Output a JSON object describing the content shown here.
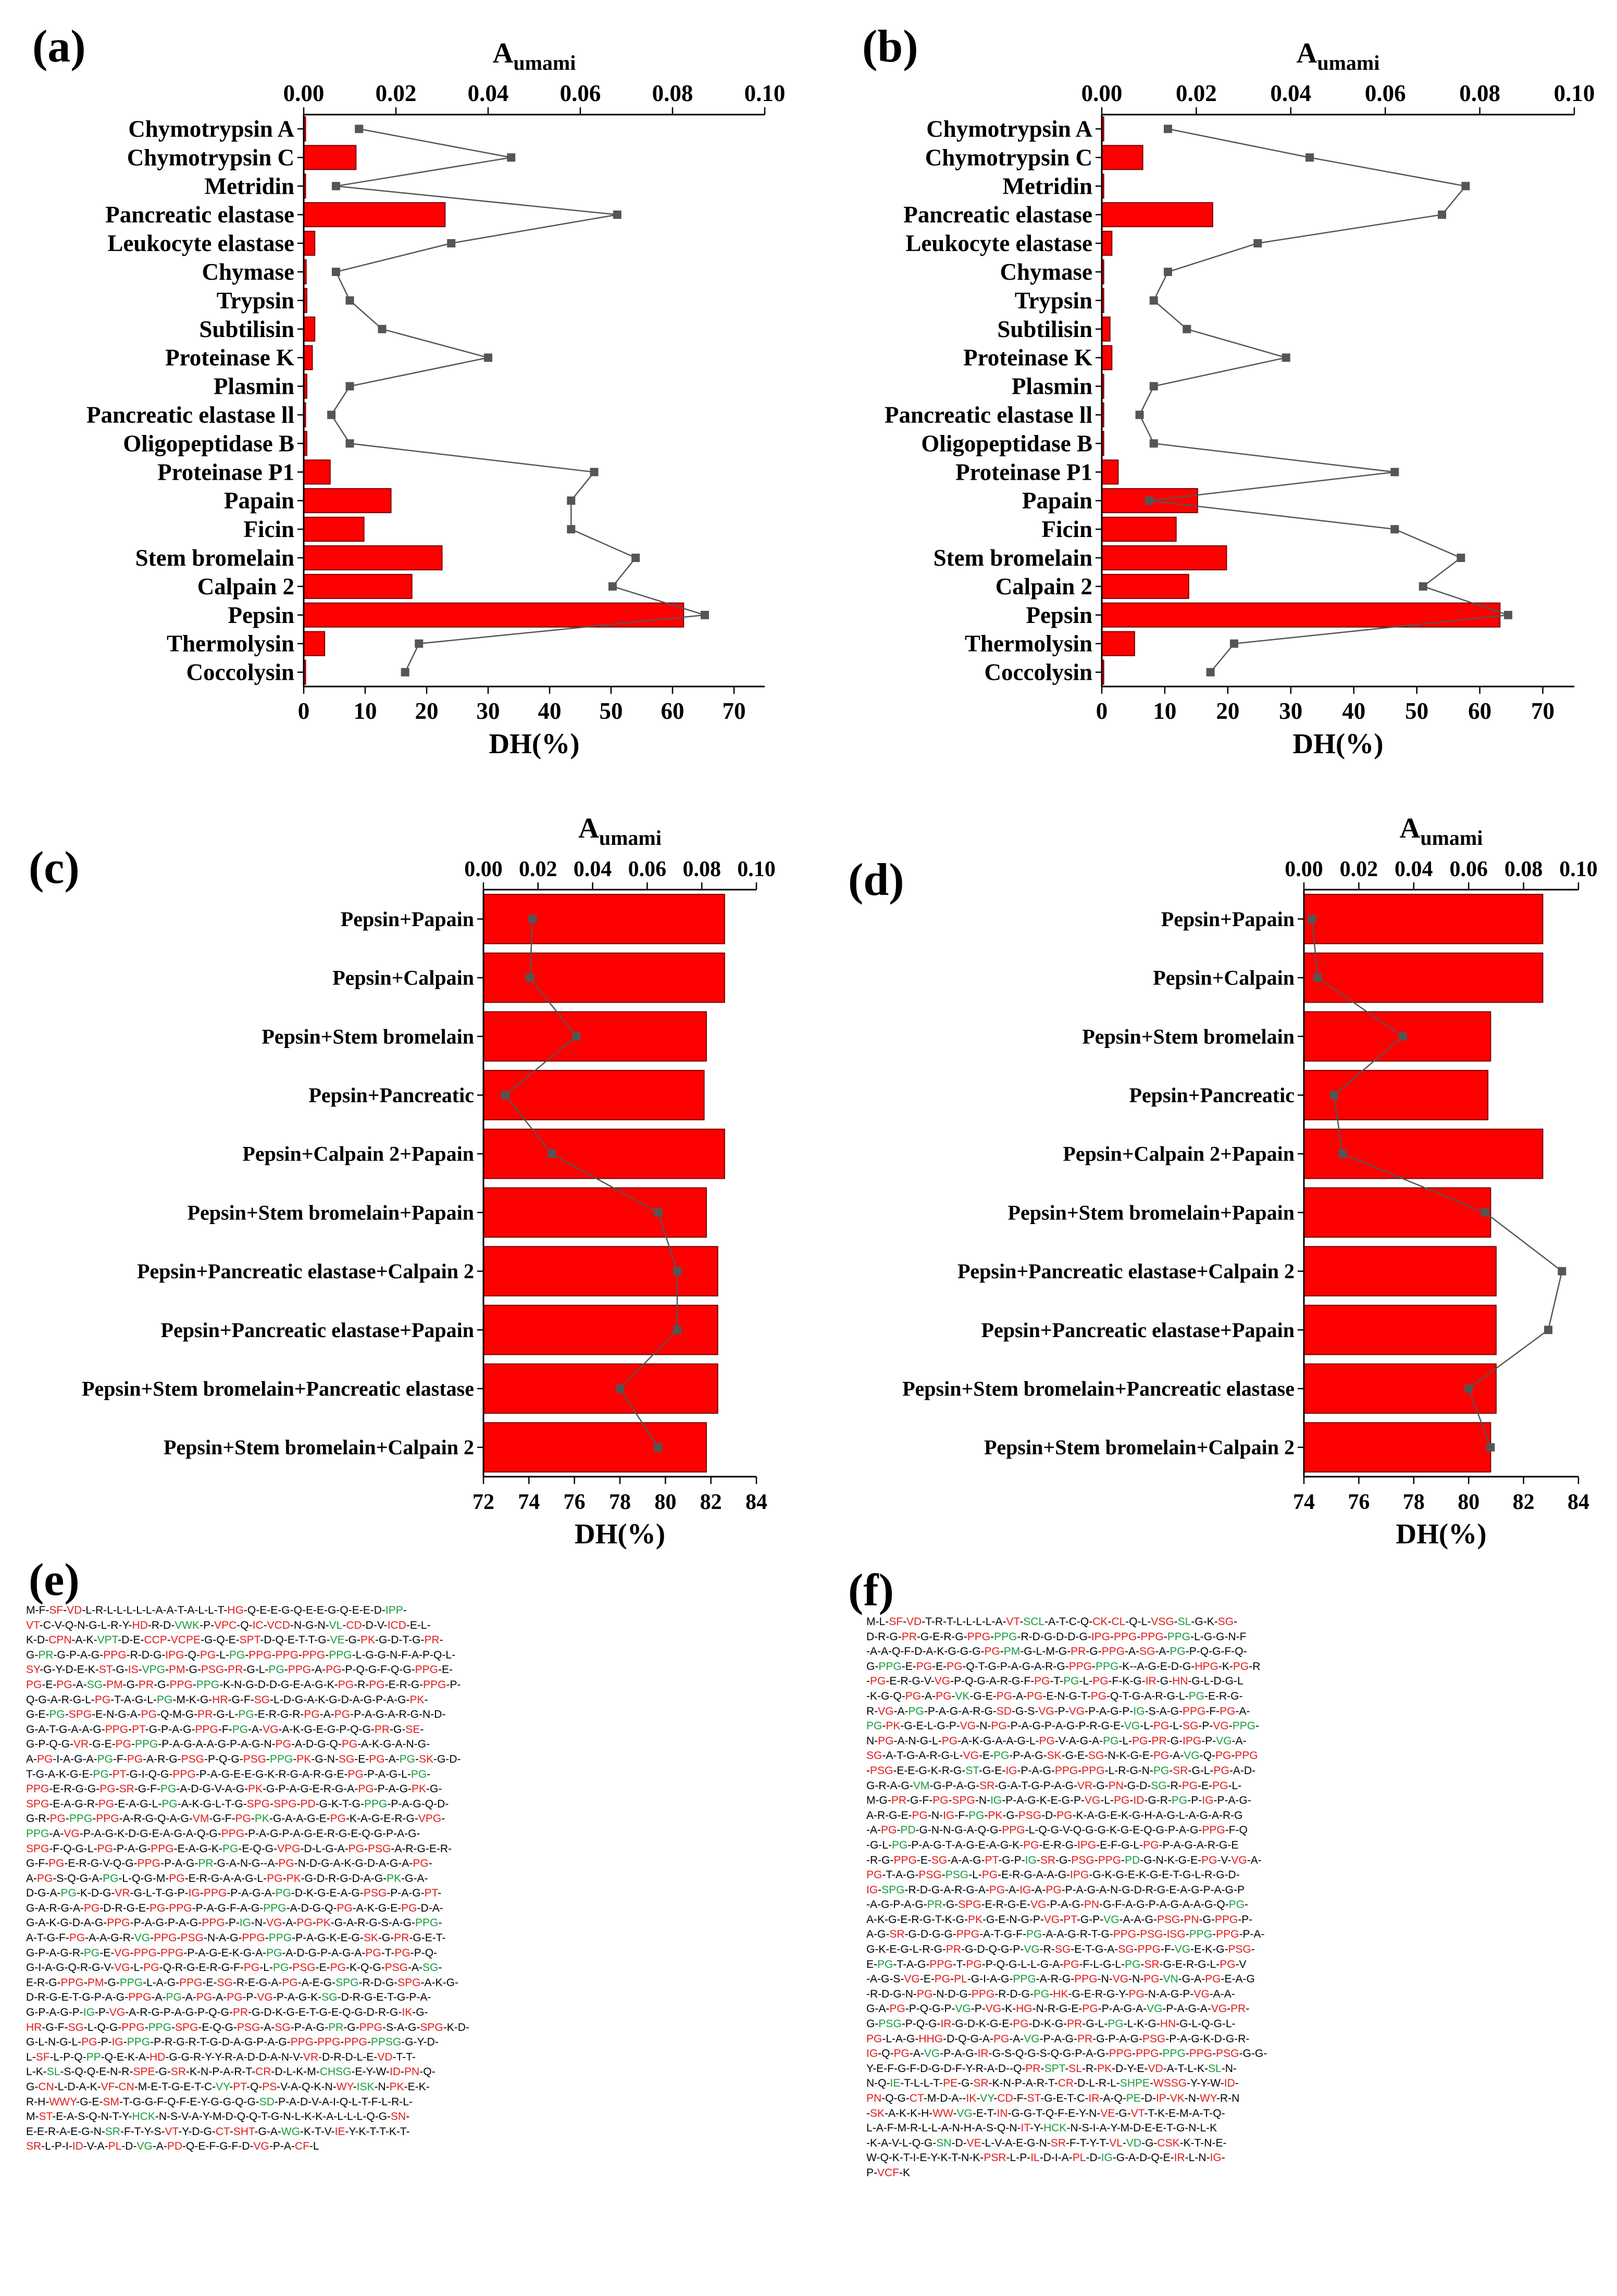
{
  "panel_labels": {
    "a": "(a)",
    "b": "(b)",
    "c": "(c)",
    "d": "(d)",
    "e": "(e)",
    "f": "(f)"
  },
  "colors": {
    "bar": "#ff0000",
    "line": "#555555",
    "marker": "#555555",
    "green_seq": "#1a9a3c",
    "red_seq": "#e21b1b"
  },
  "chart_data": [
    {
      "panel": "(a)",
      "type": "bar",
      "categories": [
        "Chymotrypsin A",
        "Chymotrypsin C",
        "Metridin",
        "Pancreatic elastase",
        "Leukocyte elastase",
        "Chymase",
        "Trypsin",
        "Subtilisin",
        "Proteinase K",
        "Plasmin",
        "Pancreatic elastase ll",
        "Oligopeptidase B",
        "Proteinase P1",
        "Papain",
        "Ficin",
        "Stem bromelain",
        "Calpain 2",
        "Pepsin",
        "Thermolysin",
        "Coccolysin"
      ],
      "values": [
        0.3,
        8.5,
        0.3,
        23.0,
        1.8,
        0.4,
        0.5,
        1.8,
        1.4,
        0.5,
        0.3,
        0.5,
        4.3,
        14.2,
        9.8,
        22.5,
        17.6,
        61.8,
        3.4,
        0.3
      ],
      "line_series": {
        "name": "Aumami",
        "values": [
          0.012,
          0.045,
          0.007,
          0.068,
          0.032,
          0.007,
          0.01,
          0.017,
          0.04,
          0.01,
          0.006,
          0.01,
          0.063,
          0.058,
          0.058,
          0.072,
          0.067,
          0.087,
          0.025,
          0.022
        ]
      },
      "xlabel": "DH(%)",
      "x2label": "A",
      "x2label_sub": "umami",
      "xlim": [
        0,
        75
      ],
      "xticks": [
        0,
        10,
        20,
        30,
        40,
        50,
        60,
        70
      ],
      "x2lim": [
        0,
        0.1
      ],
      "x2ticks": [
        "0.00",
        "0.02",
        "0.04",
        "0.06",
        "0.08",
        "0.10"
      ]
    },
    {
      "panel": "(b)",
      "type": "bar",
      "categories": [
        "Chymotrypsin A",
        "Chymotrypsin C",
        "Metridin",
        "Pancreatic elastase",
        "Leukocyte elastase",
        "Chymase",
        "Trypsin",
        "Subtilisin",
        "Proteinase K",
        "Plasmin",
        "Pancreatic elastase ll",
        "Oligopeptidase B",
        "Proteinase P1",
        "Papain",
        "Ficin",
        "Stem bromelain",
        "Calpain 2",
        "Pepsin",
        "Thermolysin",
        "Coccolysin"
      ],
      "values": [
        0.3,
        6.5,
        0.3,
        17.6,
        1.6,
        0.3,
        0.3,
        1.3,
        1.6,
        0.3,
        0.3,
        0.3,
        2.6,
        15.2,
        11.8,
        19.8,
        13.8,
        63.2,
        5.2,
        0.3
      ],
      "line_series": {
        "name": "Aumami",
        "values": [
          0.014,
          0.044,
          0.077,
          0.072,
          0.033,
          0.014,
          0.011,
          0.018,
          0.039,
          0.011,
          0.008,
          0.011,
          0.062,
          0.01,
          0.062,
          0.076,
          0.068,
          0.086,
          0.028,
          0.023
        ]
      },
      "xlabel": "DH(%)",
      "x2label": "A",
      "x2label_sub": "umami",
      "xlim": [
        0,
        75
      ],
      "xticks": [
        0,
        10,
        20,
        30,
        40,
        50,
        60,
        70
      ],
      "x2lim": [
        0,
        0.1
      ],
      "x2ticks": [
        "0.00",
        "0.02",
        "0.04",
        "0.06",
        "0.08",
        "0.10"
      ]
    },
    {
      "panel": "(c)",
      "type": "bar",
      "categories": [
        "Pepsin+Papain",
        "Pepsin+Calpain",
        "Pepsin+Stem bromelain",
        "Pepsin+Pancreatic",
        "Pepsin+Calpain 2+Papain",
        "Pepsin+Stem bromelain+Papain",
        "Pepsin+Pancreatic elastase+Calpain 2",
        "Pepsin+Pancreatic elastase+Papain",
        "Pepsin+Stem bromelain+Pancreatic elastase",
        "Pepsin+Stem bromelain+Calpain 2"
      ],
      "values": [
        82.6,
        82.6,
        81.8,
        81.7,
        82.6,
        81.8,
        82.3,
        82.3,
        82.3,
        81.8
      ],
      "line_series": {
        "name": "Aumami",
        "values": [
          0.018,
          0.017,
          0.034,
          0.008,
          0.025,
          0.064,
          0.071,
          0.071,
          0.05,
          0.064
        ]
      },
      "xlabel": "DH(%)",
      "x2label": "A",
      "x2label_sub": "umami",
      "xlim": [
        72,
        84
      ],
      "xticks": [
        72,
        74,
        76,
        78,
        80,
        82,
        84
      ],
      "x2lim": [
        0,
        0.1
      ],
      "x2ticks": [
        "0.00",
        "0.02",
        "0.04",
        "0.06",
        "0.08",
        "0.10"
      ]
    },
    {
      "panel": "(d)",
      "type": "bar",
      "categories": [
        "Pepsin+Papain",
        "Pepsin+Calpain",
        "Pepsin+Stem bromelain",
        "Pepsin+Pancreatic",
        "Pepsin+Calpain 2+Papain",
        "Pepsin+Stem bromelain+Papain",
        "Pepsin+Pancreatic elastase+Calpain 2",
        "Pepsin+Pancreatic elastase+Papain",
        "Pepsin+Stem bromelain+Pancreatic elastase",
        "Pepsin+Stem bromelain+Calpain 2"
      ],
      "values": [
        82.7,
        82.7,
        80.8,
        80.7,
        82.7,
        80.8,
        81.0,
        81.0,
        81.0,
        80.8
      ],
      "line_series": {
        "name": "Aumami",
        "values": [
          0.003,
          0.005,
          0.036,
          0.011,
          0.014,
          0.066,
          0.094,
          0.089,
          0.06,
          0.068
        ]
      },
      "xlabel": "DH(%)",
      "x2label": "A",
      "x2label_sub": "umami",
      "xlim": [
        74,
        84
      ],
      "xticks": [
        74,
        76,
        78,
        80,
        82,
        84
      ],
      "x2lim": [
        0,
        0.1
      ],
      "x2ticks": [
        "0.00",
        "0.02",
        "0.04",
        "0.06",
        "0.08",
        "0.10"
      ]
    }
  ],
  "sequences": {
    "e": [
      "M-F-SF-VD-L-R-L-L-L-L-L-A-A-T-A-L-L-T-HG-Q-E-E-G-Q-E-E-G-Q-E-E-D-IPP-",
      "VT-C-V-Q-N-G-L-R-Y-HD-R-D-VWK-P-VPC-Q-IC-VCD-N-G-N-VL-CD-D-V-ICD-E-L-",
      "K-D-CPN-A-K-VPT-D-E-CCP-VCPE-G-Q-E-SPT-D-Q-E-T-T-G-VE-G-PK-G-D-T-G-PR-",
      "G-PR-G-P-A-G-PPG-R-D-G-IPG-Q-PG-L-PG-PPG-PPG-PPG-PPG-L-G-G-N-F-A-P-Q-L-",
      "SY-G-Y-D-E-K-ST-G-IS-VPG-PM-G-PSG-PR-G-L-PG-PPG-A-PG-P-Q-G-F-Q-G-PPG-E-",
      "PG-E-PG-A-SG-PM-G-PR-G-PPG-PPG-K-N-G-D-D-G-E-A-G-K-PG-R-PG-E-R-G-PPG-P-",
      "Q-G-A-R-G-L-PG-T-A-G-L-PG-M-K-G-HR-G-F-SG-L-D-G-A-K-G-D-A-G-P-A-G-PK-",
      "G-E-PG-SPG-E-N-G-A-PG-Q-M-G-PR-G-L-PG-E-R-G-R-PG-A-PG-P-A-G-A-R-G-N-D-",
      "G-A-T-G-A-A-G-PPG-PT-G-P-A-G-PPG-F-PG-A-VG-A-K-G-E-G-P-Q-G-PR-G-SE-",
      "G-P-Q-G-VR-G-E-PG-PPG-P-A-G-A-A-G-P-A-G-N-PG-A-D-G-Q-PG-A-K-G-A-N-G-",
      "A-PG-I-A-G-A-PG-F-PG-A-R-G-PSG-P-Q-G-PSG-PPG-PK-G-N-SG-E-PG-A-PG-SK-G-D-",
      "T-G-A-K-G-E-PG-PT-G-I-Q-G-PPG-P-A-G-E-E-G-K-R-G-A-R-G-E-PG-P-A-G-L-PG-",
      "PPG-E-R-G-G-PG-SR-G-F-PG-A-D-G-V-A-G-PK-G-P-A-G-E-R-G-A-PG-P-A-G-PK-G-",
      "SPG-E-A-G-R-PG-E-A-G-L-PG-A-K-G-L-T-G-SPG-SPG-PD-G-K-T-G-PPG-P-A-G-Q-D-",
      "G-R-PG-PPG-PPG-A-R-G-Q-A-G-VM-G-F-PG-PK-G-A-A-G-E-PG-K-A-G-E-R-G-VPG-",
      "PPG-A-VG-P-A-G-K-D-G-E-A-G-A-Q-G-PPG-P-A-G-P-A-G-E-R-G-E-Q-G-P-A-G-",
      "SPG-F-Q-G-L-PG-P-A-G-PPG-E-A-G-K-PG-E-Q-G-VPG-D-L-G-A-PG-PSG-A-R-G-E-R-",
      "G-F-PG-E-R-G-V-Q-G-PPG-P-A-G-PR-G-A-N-G--A-PG-N-D-G-A-K-G-D-A-G-A-PG-",
      "A-PG-S-Q-G-A-PG-L-Q-G-M-PG-E-R-G-A-A-G-L-PG-PK-G-D-R-G-D-A-G-PK-G-A-",
      "D-G-A-PG-K-D-G-VR-G-L-T-G-P-IG-PPG-P-A-G-A-PG-D-K-G-E-A-G-PSG-P-A-G-PT-",
      "G-A-R-G-A-PG-D-R-G-E-PG-PPG-P-A-G-F-A-G-PPG-A-D-G-Q-PG-A-K-G-E-PG-D-A-",
      "G-A-K-G-D-A-G-PPG-P-A-G-P-A-G-PPG-P-IG-N-VG-A-PG-PK-G-A-R-G-S-A-G-PPG-",
      "A-T-G-F-PG-A-A-G-R-VG-PPG-PSG-N-A-G-PPG-PPG-P-A-G-K-E-G-SK-G-PR-G-E-T-",
      "G-P-A-G-R-PG-E-VG-PPG-PPG-P-A-G-E-K-G-A-PG-A-D-G-P-A-G-A-PG-T-PG-P-Q-",
      "G-I-A-G-Q-R-G-V-VG-L-PG-Q-R-G-E-R-G-F-PG-L-PG-PSG-E-PG-K-Q-G-PSG-A-SG-",
      "E-R-G-PPG-PM-G-PPG-L-A-G-PPG-E-SG-R-E-G-A-PG-A-E-G-SPG-R-D-G-SPG-A-K-G-",
      "D-R-G-E-T-G-P-A-G-PPG-A-PG-A-PG-A-PG-P-VG-P-A-G-K-SG-D-R-G-E-T-G-P-A-",
      "G-P-A-G-P-IG-P-VG-A-R-G-P-A-G-P-Q-G-PR-G-D-K-G-E-T-G-E-Q-G-D-R-G-IK-G-",
      "HR-G-F-SG-L-Q-G-PPG-PPG-SPG-E-Q-G-PSG-A-SG-P-A-G-PR-G-PPG-S-A-G-SPG-K-D-",
      "G-L-N-G-L-PG-P-IG-PPG-P-R-G-R-T-G-D-A-G-P-A-G-PPG-PPG-PPG-PPSG-G-Y-D-",
      "L-SF-L-P-Q-PP-Q-E-K-A-HD-G-G-R-Y-Y-R-A-D-D-A-N-V-VR-D-R-D-L-E-VD-T-T-",
      "L-K-SL-S-Q-Q-E-N-R-SPE-G-SR-K-N-P-A-R-T-CR-D-L-K-M-CHSG-E-Y-W-ID-PN-Q-",
      "G-CN-L-D-A-K-VF-CN-M-E-T-G-E-T-C-VY-PT-Q-PS-V-A-Q-K-N-WY-ISK-N-PK-E-K-",
      "R-H-WWY-G-E-SM-T-G-G-F-Q-F-E-Y-G-G-Q-G-SD-P-A-D-V-A-I-Q-L-T-F-L-R-L-",
      "M-ST-E-A-S-Q-N-T-Y-HCK-N-S-V-A-Y-M-D-Q-Q-T-G-N-L-K-K-A-L-L-L-Q-G-SN-",
      "E-E-R-A-E-G-N-SR-F-T-Y-S-VT-Y-D-G-CT-SHT-G-A-WG-K-T-V-IE-Y-K-T-T-K-T-",
      "SR-L-P-I-ID-V-A-PL-D-VG-A-PD-Q-E-F-G-F-D-VG-P-A-CF-L"
    ],
    "f": [
      "M-L-SF-VD-T-R-T-L-L-L-L-A-VT-SCL-A-T-C-Q-CK-CL-Q-L-VSG-SL-G-K-SG-",
      "D-R-G-PR-G-E-R-G-PPG-PPG-R-D-G-D-D-G-IPG-PPG-PPG-PPG-L-G-G-N-F",
      "-A-A-Q-F-D-A-K-G-G-G-PG-PM-G-L-M-G-PR-G-PPG-A-SG-A-PG-P-Q-G-F-Q-",
      "G-PPG-E-PG-E-PG-Q-T-G-P-A-G-A-R-G-PPG-PPG-K--A-G-E-D-G-HPG-K-PG-R",
      "-PG-E-R-G-V-VG-P-Q-G-A-R-G-F-PG-T-PG-L-PG-F-K-G-IR-G-HN-G-L-D-G-L",
      "-K-G-Q-PG-A-PG-VK-G-E-PG-A-PG-E-N-G-T-PG-Q-T-G-A-R-G-L-PG-E-R-G-",
      "R-VG-A-PG-P-A-G-A-R-G-SD-G-S-VG-P-VG-P-A-G-P-IG-S-A-G-PPG-F-PG-A-",
      "PG-PK-G-E-L-G-P-VG-N-PG-P-A-G-P-A-G-P-R-G-E-VG-L-PG-L-SG-P-VG-PPG-",
      "N-PG-A-N-G-L-PG-A-K-G-A-A-G-L-PG-V-A-G-A-PG-L-PG-PR-G-IPG-P-VG-A-",
      "SG-A-T-G-A-R-G-L-VG-E-PG-P-A-G-SK-G-E-SG-N-K-G-E-PG-A-VG-Q-PG-PPG",
      "-PSG-E-E-G-K-R-G-ST-G-E-IG-P-A-G-PPG-PPG-L-R-G-N-PG-SR-G-L-PG-A-D-",
      "G-R-A-G-VM-G-P-A-G-SR-G-A-T-G-P-A-G-VR-G-PN-G-D-SG-R-PG-E-PG-L-",
      "M-G-PR-G-F-PG-SPG-N-IG-P-A-G-K-E-G-P-VG-L-PG-ID-G-R-PG-P-IG-P-A-G-",
      "A-R-G-E-PG-N-IG-F-PG-PK-G-PSG-D-PG-K-A-G-E-K-G-H-A-G-L-A-G-A-R-G",
      "-A-PG-PD-G-N-N-G-A-Q-G-PPG-L-Q-G-V-Q-G-G-K-G-E-Q-G-P-A-G-PPG-F-Q",
      "-G-L-PG-P-A-G-T-A-G-E-A-G-K-PG-E-R-G-IPG-E-F-G-L-PG-P-A-G-A-R-G-E",
      "-R-G-PPG-E-SG-A-A-G-PT-G-P-IG-SR-G-PSG-PPG-PD-G-N-K-G-E-PG-V-VG-A-",
      "PG-T-A-G-PSG-PSG-L-PG-E-R-G-A-A-G-IPG-G-K-G-E-K-G-E-T-G-L-R-G-D-",
      "IG-SPG-R-D-G-A-R-G-A-PG-A-IG-A-PG-P-A-G-A-N-G-D-R-G-E-A-G-P-A-G-P",
      "-A-G-P-A-G-PR-G-SPG-E-R-G-E-VG-P-A-G-PN-G-F-A-G-P-A-G-A-A-G-Q-PG-",
      "A-K-G-E-R-G-T-K-G-PK-G-E-N-G-P-VG-PT-G-P-VG-A-A-G-PSG-PN-G-PPG-P-",
      "A-G-SR-G-D-G-G-PPG-A-T-G-F-PG-A-A-G-R-T-G-PPG-PSG-ISG-PPG-PPG-P-A-",
      "G-K-E-G-L-R-G-PR-G-D-Q-G-P-VG-R-SG-E-T-G-A-SG-PPG-F-VG-E-K-G-PSG-",
      "E-PG-T-A-G-PPG-T-PG-P-Q-G-L-L-G-A-PG-F-L-G-L-PG-SR-G-E-R-G-L-PG-V",
      "-A-G-S-VG-E-PG-PL-G-I-A-G-PPG-A-R-G-PPG-N-VG-N-PG-VN-G-A-PG-E-A-G",
      "-R-D-G-N-PG-N-D-G-PPG-R-D-G-PG-HK-G-E-R-G-Y-PG-N-A-G-P-VG-A-A-",
      "G-A-PG-P-Q-G-P-VG-P-VG-K-HG-N-R-G-E-PG-P-A-G-A-VG-P-A-G-A-VG-PR-",
      "G-PSG-P-Q-G-IR-G-D-K-G-E-PG-D-K-G-PR-G-L-PG-L-K-G-HN-G-L-Q-G-L-",
      "PG-L-A-G-HHG-D-Q-G-A-PG-A-VG-P-A-G-PR-G-P-A-G-PSG-P-A-G-K-D-G-R-",
      "IG-Q-PG-A-VG-P-A-G-IR-G-S-Q-G-S-Q-G-P-A-G-PPG-PPG-PPG-PPG-PSG-G-G-",
      "Y-E-F-G-F-D-G-D-F-Y-R-A-D--Q-PR-SPT-SL-R-PK-D-Y-E-VD-A-T-L-K-SL-N-",
      "N-Q-IE-T-L-L-T-PE-G-SR-K-N-P-A-R-T-CR-D-L-R-L-SHPE-WSSG-Y-Y-W-ID-",
      "PN-Q-G-CT-M-D-A--IK-VY-CD-F-ST-G-E-T-C-IR-A-Q-PE-D-IP-VK-N-WY-R-N",
      "-SK-A-K-K-H-WW-VG-E-T-IN-G-G-T-Q-F-E-Y-N-VE-G-VT-T-K-E-M-A-T-Q-",
      "L-A-F-M-R-L-L-A-N-H-A-S-Q-N-IT-Y-HCK-N-S-I-A-Y-M-D-E-E-T-G-N-L-K",
      "-K-A-V-L-Q-G-SN-D-VE-L-V-A-E-G-N-SR-F-T-Y-T-VL-VD-G-CSK-K-T-N-E-",
      "W-Q-K-T-I-E-Y-K-T-N-K-PSR-L-P-IL-D-I-A-PL-D-IG-G-A-D-Q-E-IR-L-N-IG-",
      "P-VCF-K"
    ]
  }
}
